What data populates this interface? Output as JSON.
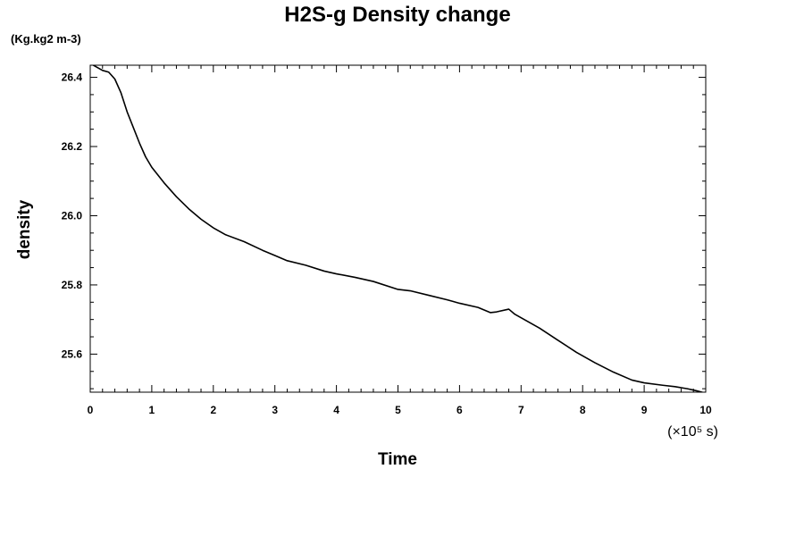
{
  "chart_data": {
    "type": "line",
    "title": "H2S-g Density change",
    "units_label": "(Kg.kg2 m-3)",
    "xlabel": "Time",
    "ylabel": "density",
    "x_scale_label": "(×10⁵ s)",
    "xlim": [
      0,
      10
    ],
    "ylim": [
      25.49,
      26.435
    ],
    "x_ticks": [
      0,
      1,
      2,
      3,
      4,
      5,
      6,
      7,
      8,
      9,
      10
    ],
    "x_tick_labels": [
      "0",
      "1",
      "2",
      "3",
      "4",
      "5",
      "6",
      "7",
      "8",
      "9",
      "10"
    ],
    "y_ticks": [
      25.6,
      25.8,
      26.0,
      26.2,
      26.4
    ],
    "y_tick_labels": [
      "25.6",
      "25.8",
      "26.0",
      "26.2",
      "26.4"
    ],
    "grid": false,
    "line_color": "#000000",
    "series": [
      {
        "x": [
          0.0,
          0.1,
          0.2,
          0.3,
          0.4,
          0.5,
          0.6,
          0.7,
          0.8,
          0.9,
          1.0,
          1.2,
          1.4,
          1.6,
          1.8,
          2.0,
          2.2,
          2.5,
          2.8,
          3.0,
          3.2,
          3.5,
          3.8,
          4.0,
          4.3,
          4.6,
          5.0,
          5.2,
          5.5,
          5.8,
          6.0,
          6.3,
          6.5,
          6.6,
          6.8,
          6.9,
          7.0,
          7.3,
          7.6,
          7.9,
          8.2,
          8.5,
          8.8,
          9.0,
          9.3,
          9.5,
          9.7,
          9.85,
          10.0
        ],
        "y": [
          26.44,
          26.43,
          26.42,
          26.415,
          26.395,
          26.355,
          26.3,
          26.255,
          26.21,
          26.17,
          26.14,
          26.095,
          26.055,
          26.02,
          25.99,
          25.965,
          25.945,
          25.925,
          25.9,
          25.885,
          25.87,
          25.857,
          25.84,
          25.832,
          25.822,
          25.81,
          25.787,
          25.783,
          25.77,
          25.757,
          25.747,
          25.735,
          25.72,
          25.722,
          25.73,
          25.715,
          25.705,
          25.675,
          25.64,
          25.605,
          25.575,
          25.548,
          25.525,
          25.517,
          25.51,
          25.506,
          25.5,
          25.494,
          25.487
        ]
      }
    ]
  }
}
